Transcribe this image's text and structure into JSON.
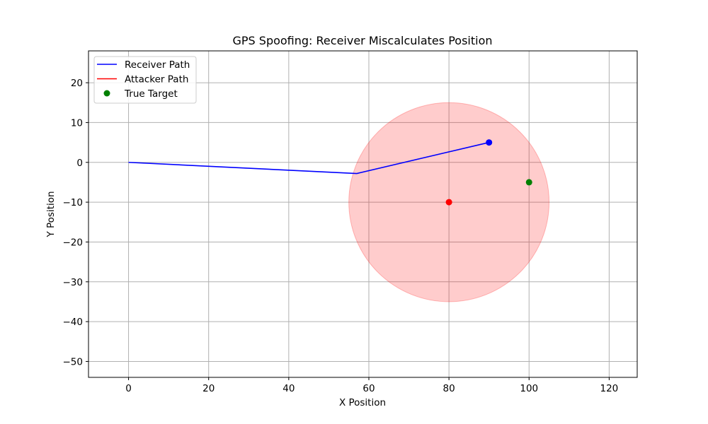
{
  "chart_data": {
    "type": "line",
    "title": "GPS Spoofing: Receiver Miscalculates Position",
    "xlabel": "X Position",
    "ylabel": "Y Position",
    "xlim": [
      -10,
      127
    ],
    "ylim": [
      -54,
      28
    ],
    "xticks": [
      0,
      20,
      40,
      60,
      80,
      100,
      120
    ],
    "yticks": [
      -50,
      -40,
      -30,
      -20,
      -10,
      0,
      10,
      20
    ],
    "grid": true,
    "legend_position": "top-left",
    "series": [
      {
        "name": "Receiver Path",
        "kind": "line",
        "color": "#0000ff",
        "x": [
          0,
          57,
          90
        ],
        "y": [
          0,
          -2.8,
          5
        ]
      },
      {
        "name": "Attacker Path",
        "kind": "line",
        "color": "#ff0000",
        "x": [],
        "y": []
      },
      {
        "name": "True Target",
        "kind": "scatter",
        "color": "#008000",
        "x": [
          100
        ],
        "y": [
          -5
        ]
      }
    ],
    "markers": [
      {
        "x": 90,
        "y": 5,
        "color": "#0000ff"
      },
      {
        "x": 80,
        "y": -10,
        "color": "#ff0000"
      }
    ],
    "region": {
      "cx": 80,
      "cy": -10,
      "r": 25,
      "color": "#ff0000",
      "opacity": 0.2
    }
  }
}
